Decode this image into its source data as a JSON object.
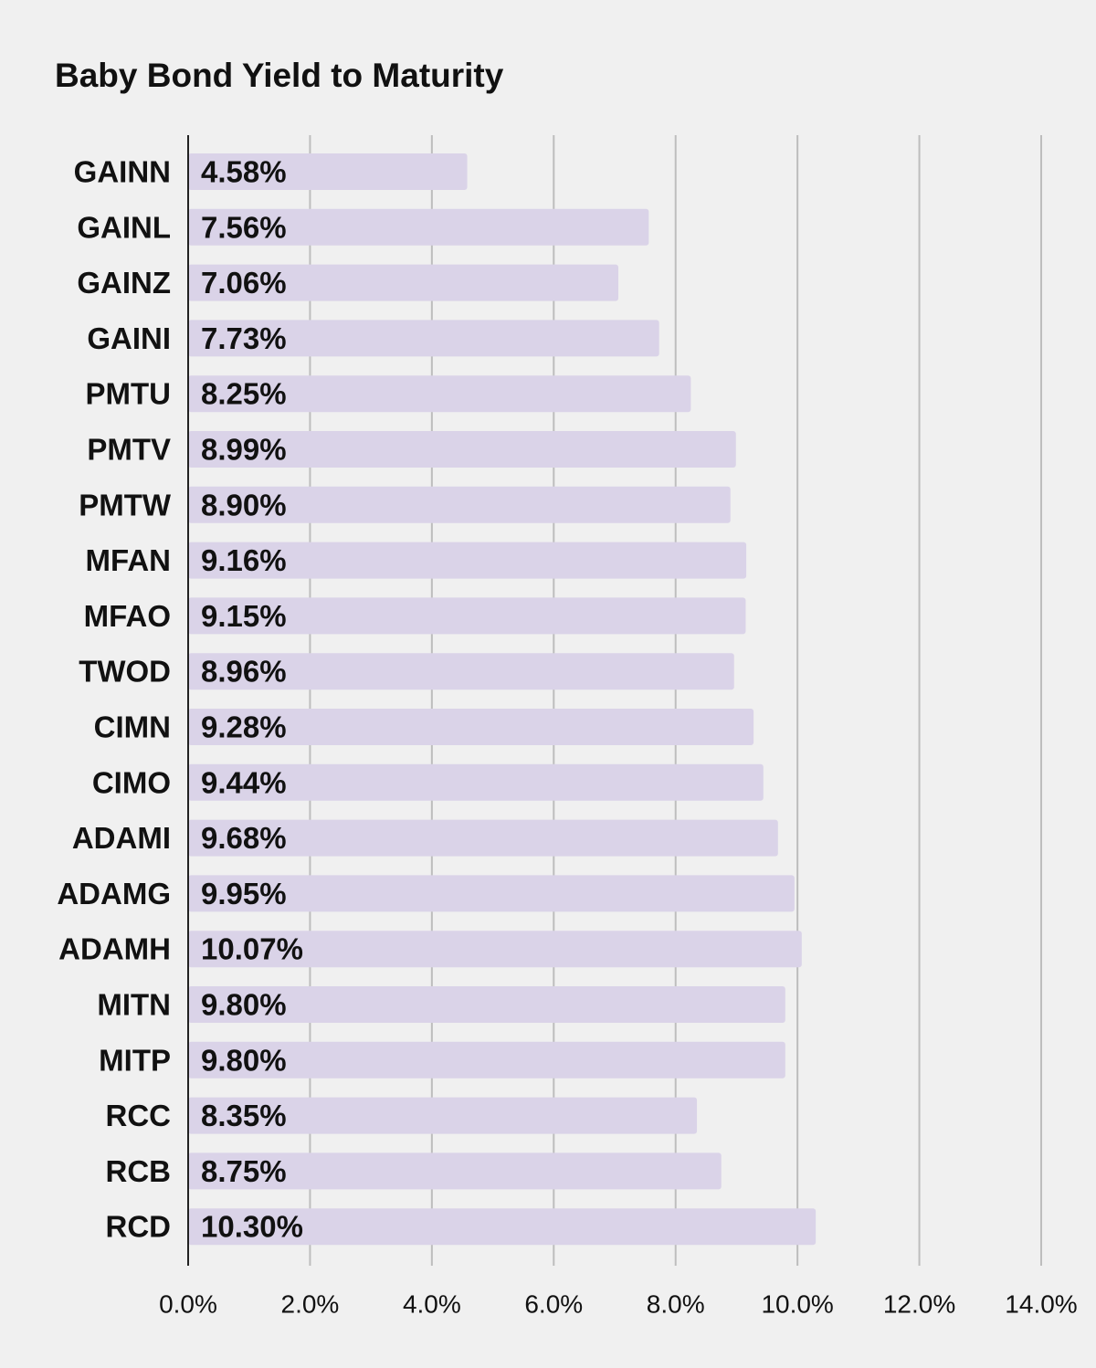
{
  "chart_data": {
    "type": "bar",
    "orientation": "horizontal",
    "title": "Baby Bond Yield to Maturity",
    "xlabel": "",
    "ylabel": "",
    "categories": [
      "GAINN",
      "GAINL",
      "GAINZ",
      "GAINI",
      "PMTU",
      "PMTV",
      "PMTW",
      "MFAN",
      "MFAO",
      "TWOD",
      "CIMN",
      "CIMO",
      "ADAMI",
      "ADAMG",
      "ADAMH",
      "MITN",
      "MITP",
      "RCC",
      "RCB",
      "RCD"
    ],
    "values": [
      4.58,
      7.56,
      7.06,
      7.73,
      8.25,
      8.99,
      8.9,
      9.16,
      9.15,
      8.96,
      9.28,
      9.44,
      9.68,
      9.95,
      10.07,
      9.8,
      9.8,
      8.35,
      8.75,
      10.3
    ],
    "data_labels": [
      "4.58%",
      "7.56%",
      "7.06%",
      "7.73%",
      "8.25%",
      "8.99%",
      "8.90%",
      "9.16%",
      "9.15%",
      "8.96%",
      "9.28%",
      "9.44%",
      "9.68%",
      "9.95%",
      "10.07%",
      "9.80%",
      "9.80%",
      "8.35%",
      "8.75%",
      "10.30%"
    ],
    "xlim": [
      0,
      14
    ],
    "ticks": [
      0,
      2,
      4,
      6,
      8,
      10,
      12,
      14
    ],
    "tick_labels": [
      "0.0%",
      "2.0%",
      "4.0%",
      "6.0%",
      "8.0%",
      "10.0%",
      "12.0%",
      "14.0%"
    ],
    "grid": true,
    "legend": "none",
    "colors": {
      "bar": "#dad3e8",
      "grid": "#bdbdbd",
      "axis": "#222222",
      "background": "#f0f0f0",
      "text": "#111111"
    }
  }
}
